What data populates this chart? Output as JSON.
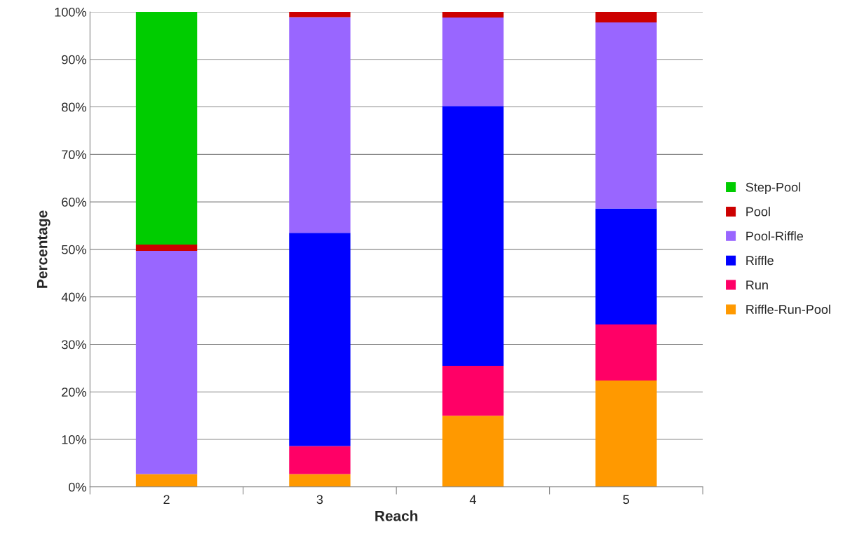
{
  "chart_data": {
    "type": "bar",
    "stacked": true,
    "xlabel": "Reach",
    "ylabel": "Percentage",
    "categories": [
      "2",
      "3",
      "4",
      "5"
    ],
    "series": [
      {
        "name": "Riffle-Run-Pool",
        "color": "#ff9900",
        "values": [
          2.7,
          2.7,
          15.0,
          22.4
        ]
      },
      {
        "name": "Run",
        "color": "#ff0066",
        "values": [
          0,
          5.9,
          10.5,
          11.8
        ]
      },
      {
        "name": "Riffle",
        "color": "#0000ff",
        "values": [
          0,
          44.9,
          54.7,
          24.4
        ]
      },
      {
        "name": "Pool-Riffle",
        "color": "#9966ff",
        "values": [
          47.0,
          45.4,
          18.6,
          39.2
        ]
      },
      {
        "name": "Pool",
        "color": "#cc0000",
        "values": [
          1.3,
          1.1,
          1.2,
          2.2
        ]
      },
      {
        "name": "Step-Pool",
        "color": "#00cc00",
        "values": [
          49.0,
          0,
          0,
          0
        ]
      }
    ],
    "ylim": [
      0,
      100
    ],
    "yticks": [
      {
        "value": 0,
        "label": "0%"
      },
      {
        "value": 10,
        "label": "10%"
      },
      {
        "value": 20,
        "label": "20%"
      },
      {
        "value": 30,
        "label": "30%"
      },
      {
        "value": 40,
        "label": "40%"
      },
      {
        "value": 50,
        "label": "50%"
      },
      {
        "value": 60,
        "label": "60%"
      },
      {
        "value": 70,
        "label": "70%"
      },
      {
        "value": 80,
        "label": "80%"
      },
      {
        "value": 90,
        "label": "90%"
      },
      {
        "value": 100,
        "label": "100%"
      }
    ],
    "grid": "y",
    "legend": "right"
  }
}
